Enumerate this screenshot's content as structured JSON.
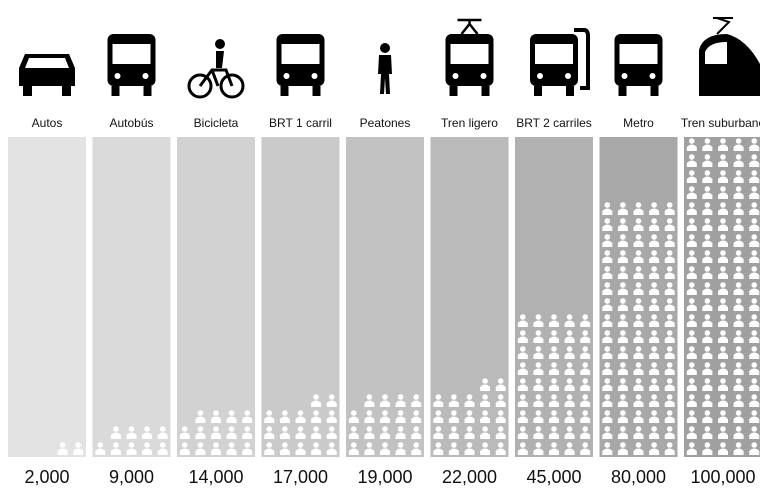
{
  "chart_data": {
    "type": "pictogram",
    "categories": [
      "Autos",
      "Autobús",
      "Bicicleta",
      "BRT 1 carril",
      "Peatones",
      "Tren ligero",
      "BRT 2 carriles",
      "Metro",
      "Tren suburbano"
    ],
    "values": [
      2000,
      9000,
      14000,
      17000,
      19000,
      22000,
      45000,
      80000,
      100000
    ],
    "value_labels": [
      "2,000",
      "9,000",
      "14,000",
      "17,000",
      "19,000",
      "22,000",
      "45,000",
      "80,000",
      "100,000"
    ],
    "colors": [
      "#e3e3e3",
      "#dadada",
      "#d2d2d2",
      "#cacaca",
      "#c2c2c2",
      "#bababa",
      "#b1b1b1",
      "#a8a8a8",
      "#a0a0a0"
    ],
    "ylim": [
      0,
      100000
    ]
  }
}
